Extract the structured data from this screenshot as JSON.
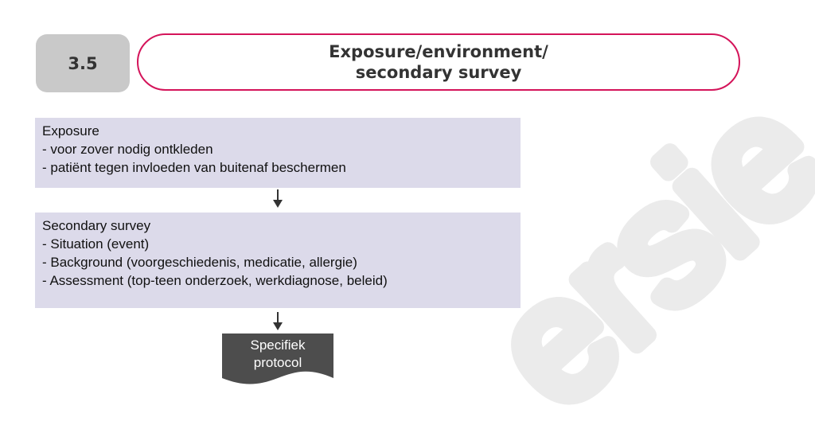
{
  "header": {
    "section_number": "3.5",
    "title_line1": "Exposure/environment/",
    "title_line2": "secondary survey"
  },
  "flow": {
    "exposure": {
      "heading": "Exposure",
      "items": [
        "- voor zover nodig ontkleden",
        "- patiënt tegen invloeden van buitenaf beschermen"
      ]
    },
    "secondary": {
      "heading": "Secondary survey",
      "items": [
        "- Situation (event)",
        "- Background (voorgeschiedenis, medicatie, allergie)",
        "- Assessment (top-teen onderzoek, werkdiagnose, beleid)"
      ]
    },
    "document": {
      "line1": "Specifiek",
      "line2": "protocol"
    }
  },
  "watermark": {
    "text": "ersie"
  },
  "colors": {
    "title_border": "#d4145a",
    "badge_bg": "#c9c9c9",
    "box_bg": "#dcdaea",
    "document_bg": "#4d4d4d",
    "watermark": "#ebebeb"
  }
}
